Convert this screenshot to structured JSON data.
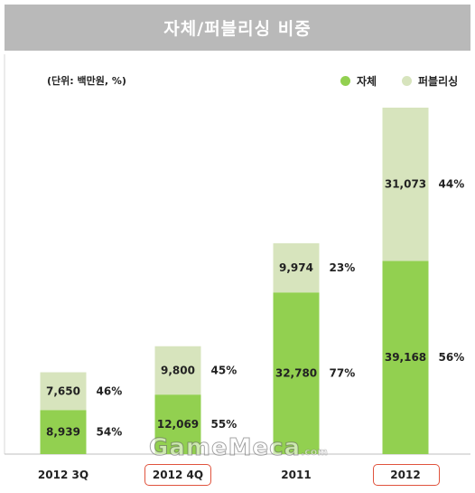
{
  "colors": {
    "title_bg": "#b9b9b9",
    "self": "#92d050",
    "publishing": "#d7e4bd",
    "highlight_box": "#e0533d"
  },
  "watermark": {
    "main": "GameMeca",
    "suffix": ".com"
  },
  "chart_data": {
    "type": "bar",
    "stacked": true,
    "title": "자체/퍼블리싱 비중",
    "unit_label": "(단위: 백만원, %)",
    "legend_position": "top-right",
    "categories": [
      "2012 3Q",
      "2012 4Q",
      "2011",
      "2012"
    ],
    "highlighted_categories": [
      "2012 4Q",
      "2012"
    ],
    "series": [
      {
        "name": "자체",
        "values": [
          8939,
          12069,
          32780,
          39168
        ],
        "labels": [
          "8,939",
          "12,069",
          "32,780",
          "39,168"
        ],
        "pct_labels": [
          "54%",
          "55%",
          "77%",
          "56%"
        ]
      },
      {
        "name": "퍼블리싱",
        "values": [
          7650,
          9800,
          9974,
          31073
        ],
        "labels": [
          "7,650",
          "9,800",
          "9,974",
          "31,073"
        ],
        "pct_labels": [
          "46%",
          "45%",
          "23%",
          "44%"
        ]
      }
    ],
    "ylim": [
      0,
      70241
    ],
    "grid": false
  }
}
